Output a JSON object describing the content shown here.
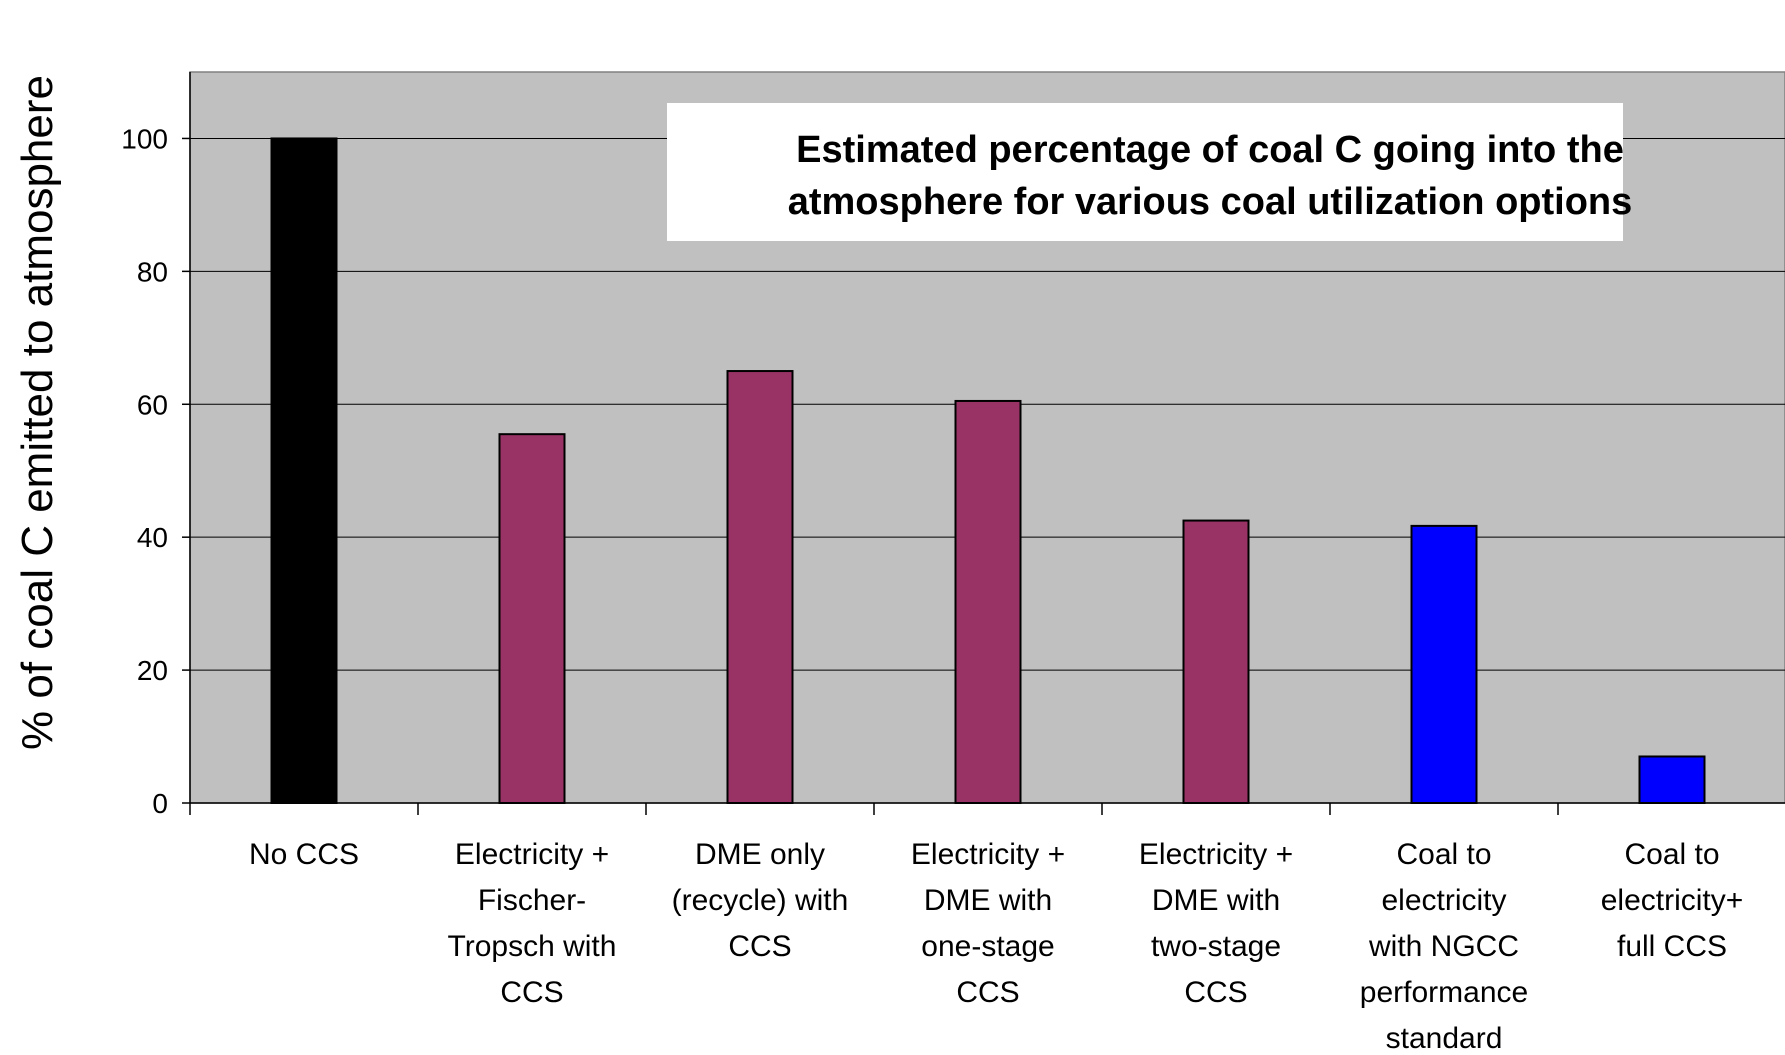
{
  "chart_data": {
    "type": "bar",
    "title": "Estimated percentage of coal C going into the atmosphere for various coal utilization options",
    "title_lines": [
      "Estimated percentage of coal C going into the",
      "atmosphere for various coal utilization options"
    ],
    "ylabel": "% of coal C emitted to atmosphere",
    "xlabel": "",
    "ylim": [
      0,
      110
    ],
    "yticks": [
      0,
      20,
      40,
      60,
      80,
      100
    ],
    "grid": true,
    "plot_background": "#c0c0c0",
    "categories": [
      [
        "No CCS"
      ],
      [
        "Electricity +",
        "Fischer-",
        "Tropsch with",
        "CCS"
      ],
      [
        "DME only",
        "(recycle) with",
        "CCS"
      ],
      [
        "Electricity +",
        "DME with",
        "one-stage",
        "CCS"
      ],
      [
        "Electricity +",
        "DME with",
        "two-stage",
        "CCS"
      ],
      [
        "Coal to",
        "electricity",
        "with NGCC",
        "performance",
        "standard"
      ],
      [
        "Coal to",
        "electricity+",
        "full CCS"
      ]
    ],
    "values": [
      100,
      55.5,
      65,
      60.5,
      42.5,
      41.7,
      7
    ],
    "colors": [
      "#000000",
      "#993366",
      "#993366",
      "#993366",
      "#993366",
      "#0000ff",
      "#0000ff"
    ]
  }
}
